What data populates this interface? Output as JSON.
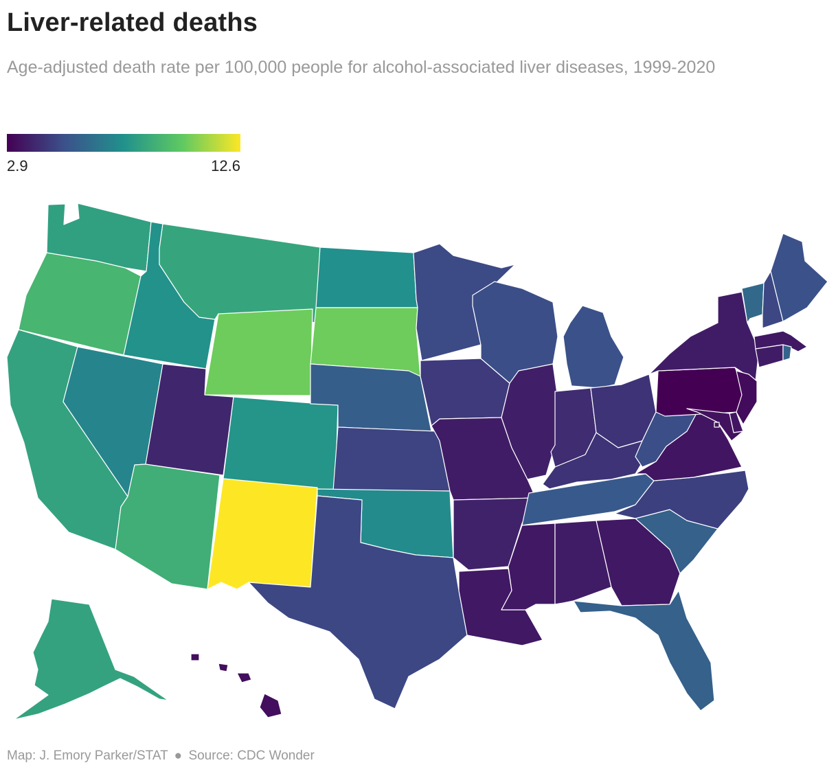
{
  "title": "Liver-related deaths",
  "subtitle": "Age-adjusted death rate per 100,000 people for alcohol-associated liver diseases, 1999-2020",
  "legend": {
    "min_label": "2.9",
    "max_label": "12.6"
  },
  "footer": {
    "credit": "Map: J. Emory Parker/STAT",
    "separator": "●",
    "source": "Source: CDC Wonder"
  },
  "chart_data": {
    "type": "choropleth",
    "value_range": [
      2.9,
      12.6
    ],
    "color_scale": [
      "#440154",
      "#3b528b",
      "#21918c",
      "#5ec962",
      "#fde725"
    ],
    "states": [
      {
        "state": "WA",
        "value": 8.4
      },
      {
        "state": "OR",
        "value": 9.3
      },
      {
        "state": "CA",
        "value": 8.5
      },
      {
        "state": "ID",
        "value": 7.8
      },
      {
        "state": "NV",
        "value": 7.3
      },
      {
        "state": "MT",
        "value": 8.6
      },
      {
        "state": "WY",
        "value": 10.4
      },
      {
        "state": "UT",
        "value": 4.0
      },
      {
        "state": "AZ",
        "value": 9.0
      },
      {
        "state": "CO",
        "value": 7.9
      },
      {
        "state": "NM",
        "value": 12.6
      },
      {
        "state": "ND",
        "value": 7.7
      },
      {
        "state": "SD",
        "value": 10.4
      },
      {
        "state": "NE",
        "value": 5.8
      },
      {
        "state": "KS",
        "value": 4.9
      },
      {
        "state": "OK",
        "value": 7.5
      },
      {
        "state": "TX",
        "value": 5.0
      },
      {
        "state": "MN",
        "value": 5.1
      },
      {
        "state": "IA",
        "value": 4.6
      },
      {
        "state": "MO",
        "value": 3.7
      },
      {
        "state": "AR",
        "value": 3.9
      },
      {
        "state": "LA",
        "value": 3.6
      },
      {
        "state": "WI",
        "value": 5.2
      },
      {
        "state": "IL",
        "value": 3.8
      },
      {
        "state": "MI",
        "value": 5.3
      },
      {
        "state": "IN",
        "value": 4.2
      },
      {
        "state": "OH",
        "value": 4.4
      },
      {
        "state": "KY",
        "value": 4.4
      },
      {
        "state": "TN",
        "value": 5.6
      },
      {
        "state": "MS",
        "value": 3.6
      },
      {
        "state": "AL",
        "value": 3.7
      },
      {
        "state": "GA",
        "value": 3.6
      },
      {
        "state": "FL",
        "value": 5.9
      },
      {
        "state": "SC",
        "value": 5.9
      },
      {
        "state": "NC",
        "value": 4.8
      },
      {
        "state": "VA",
        "value": 3.5
      },
      {
        "state": "WV",
        "value": 5.2
      },
      {
        "state": "PA",
        "value": 2.9
      },
      {
        "state": "NY",
        "value": 3.7
      },
      {
        "state": "VT",
        "value": 6.2
      },
      {
        "state": "NH",
        "value": 5.0
      },
      {
        "state": "ME",
        "value": 5.3
      },
      {
        "state": "MA",
        "value": 3.6
      },
      {
        "state": "RI",
        "value": 6.0
      },
      {
        "state": "CT",
        "value": 3.7
      },
      {
        "state": "NJ",
        "value": 3.2
      },
      {
        "state": "DE",
        "value": 3.5
      },
      {
        "state": "MD",
        "value": 3.4
      },
      {
        "state": "DC",
        "value": 3.5
      },
      {
        "state": "AK",
        "value": 8.5
      },
      {
        "state": "HI",
        "value": 3.3
      }
    ]
  }
}
